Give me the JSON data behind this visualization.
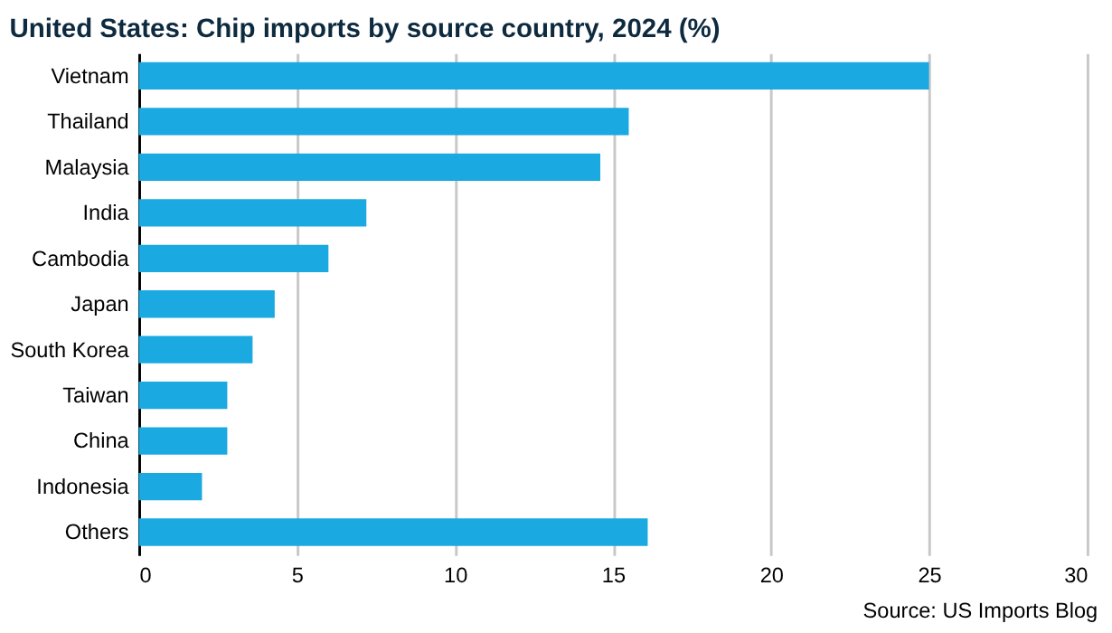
{
  "chart_data": {
    "type": "bar",
    "orientation": "horizontal",
    "title": "United States: Chip imports by source country, 2024 (%)",
    "categories": [
      "Vietnam",
      "Thailand",
      "Malaysia",
      "India",
      "Cambodia",
      "Japan",
      "South Korea",
      "Taiwan",
      "China",
      "Indonesia",
      "Others"
    ],
    "values": [
      25.0,
      15.5,
      14.6,
      7.2,
      6.0,
      4.3,
      3.6,
      2.8,
      2.8,
      2.0,
      16.1
    ],
    "color": "#1aa9e0",
    "xlim": [
      0,
      30
    ],
    "xticks": [
      0,
      5,
      10,
      15,
      20,
      25,
      30
    ],
    "grid": "x",
    "annotations": [
      "Source: US Imports Blog"
    ]
  }
}
